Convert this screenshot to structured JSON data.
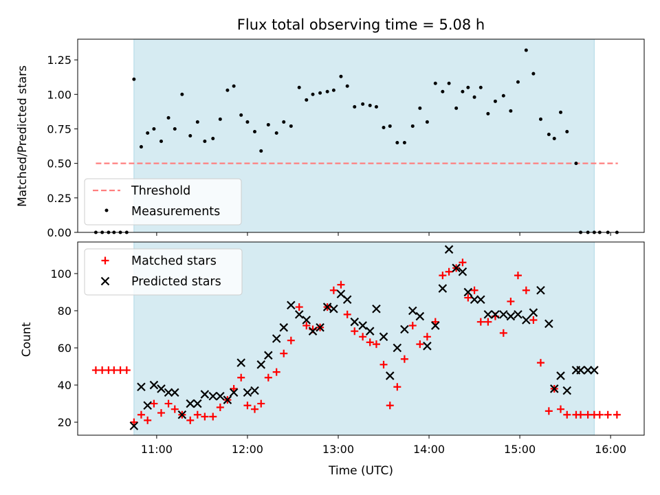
{
  "chart_data": [
    {
      "type": "scatter",
      "panel": "top",
      "title": "Flux total observing time = 5.08 h",
      "xlabel": "",
      "ylabel": "Matched/Predicted stars",
      "x_unit": "hours UTC",
      "xlim": [
        10.13,
        16.37
      ],
      "ylim": [
        0.0,
        1.4
      ],
      "yticks": [
        0.0,
        0.25,
        0.5,
        0.75,
        1.0,
        1.25
      ],
      "ytick_labels": [
        "0.00",
        "0.25",
        "0.50",
        "0.75",
        "1.00",
        "1.25"
      ],
      "xticks": [
        11,
        12,
        13,
        14,
        15,
        16
      ],
      "shaded_span": [
        10.75,
        15.82
      ],
      "shade_color": "#add8e6",
      "threshold": {
        "name": "Threshold",
        "value": 0.5,
        "x_range": [
          10.33,
          16.08
        ],
        "color": "#ff7f7f"
      },
      "measurements": {
        "name": "Measurements",
        "color": "#000000",
        "x": [
          10.33,
          10.4,
          10.47,
          10.53,
          10.6,
          10.67,
          10.75,
          10.83,
          10.9,
          10.97,
          11.05,
          11.13,
          11.2,
          11.28,
          11.37,
          11.45,
          11.53,
          11.62,
          11.7,
          11.78,
          11.85,
          11.93,
          12.0,
          12.08,
          12.15,
          12.23,
          12.32,
          12.4,
          12.48,
          12.57,
          12.65,
          12.72,
          12.8,
          12.88,
          12.95,
          13.03,
          13.1,
          13.18,
          13.27,
          13.35,
          13.42,
          13.5,
          13.57,
          13.65,
          13.73,
          13.82,
          13.9,
          13.98,
          14.07,
          14.15,
          14.22,
          14.3,
          14.37,
          14.43,
          14.5,
          14.57,
          14.65,
          14.73,
          14.82,
          14.9,
          14.98,
          15.07,
          15.15,
          15.23,
          15.32,
          15.38,
          15.45,
          15.52,
          15.62,
          15.67,
          15.75,
          15.82,
          15.88,
          15.97,
          16.07
        ],
        "y": [
          0.0,
          0.0,
          0.0,
          0.0,
          0.0,
          0.0,
          1.11,
          0.62,
          0.72,
          0.75,
          0.66,
          0.83,
          0.75,
          1.0,
          0.7,
          0.8,
          0.66,
          0.68,
          0.82,
          1.03,
          1.06,
          0.85,
          0.8,
          0.73,
          0.59,
          0.78,
          0.72,
          0.8,
          0.77,
          1.05,
          0.96,
          1.0,
          1.01,
          1.02,
          1.03,
          1.13,
          1.06,
          0.91,
          0.93,
          0.92,
          0.91,
          0.76,
          0.77,
          0.65,
          0.65,
          0.77,
          0.9,
          0.8,
          1.08,
          1.02,
          1.08,
          0.9,
          1.02,
          1.05,
          0.98,
          1.05,
          0.86,
          0.95,
          0.99,
          0.88,
          1.09,
          1.32,
          1.15,
          0.82,
          0.71,
          0.68,
          0.87,
          0.73,
          0.5,
          0.0,
          0.0,
          0.0,
          0.0,
          0.0,
          0.0
        ]
      },
      "legend": {
        "location": "lower-left",
        "entries": [
          "Threshold",
          "Measurements"
        ]
      }
    },
    {
      "type": "scatter",
      "panel": "bottom",
      "title": "",
      "xlabel": "Time (UTC)",
      "ylabel": "Count",
      "xlim": [
        10.13,
        16.37
      ],
      "ylim": [
        13,
        117
      ],
      "yticks": [
        20,
        40,
        60,
        80,
        100
      ],
      "ytick_labels": [
        "20",
        "40",
        "60",
        "80",
        "100"
      ],
      "xticks": [
        11,
        12,
        13,
        14,
        15,
        16
      ],
      "xtick_labels": [
        "11:00",
        "12:00",
        "13:00",
        "14:00",
        "15:00",
        "16:00"
      ],
      "shaded_span": [
        10.75,
        15.82
      ],
      "shade_color": "#add8e6",
      "series": [
        {
          "name": "Matched stars",
          "marker": "+",
          "color": "#ff0000",
          "x": [
            10.33,
            10.4,
            10.47,
            10.53,
            10.6,
            10.67,
            10.75,
            10.83,
            10.9,
            10.97,
            11.05,
            11.13,
            11.2,
            11.28,
            11.37,
            11.45,
            11.53,
            11.62,
            11.7,
            11.78,
            11.85,
            11.93,
            12.0,
            12.08,
            12.15,
            12.23,
            12.32,
            12.4,
            12.48,
            12.57,
            12.65,
            12.72,
            12.8,
            12.88,
            12.95,
            13.03,
            13.1,
            13.18,
            13.27,
            13.35,
            13.42,
            13.5,
            13.57,
            13.65,
            13.73,
            13.82,
            13.9,
            13.98,
            14.07,
            14.15,
            14.22,
            14.3,
            14.37,
            14.43,
            14.5,
            14.57,
            14.65,
            14.73,
            14.82,
            14.9,
            14.98,
            15.07,
            15.15,
            15.23,
            15.32,
            15.38,
            15.45,
            15.52,
            15.62,
            15.67,
            15.75,
            15.82,
            15.88,
            15.97,
            16.07
          ],
          "y": [
            48,
            48,
            48,
            48,
            48,
            48,
            20,
            24,
            21,
            30,
            25,
            30,
            27,
            24,
            21,
            24,
            23,
            23,
            28,
            32,
            38,
            44,
            29,
            27,
            30,
            44,
            47,
            57,
            64,
            82,
            72,
            70,
            71,
            82,
            91,
            94,
            78,
            69,
            66,
            63,
            62,
            51,
            29,
            39,
            54,
            72,
            62,
            66,
            74,
            99,
            101,
            103,
            106,
            87,
            91,
            74,
            74,
            77,
            68,
            85,
            99,
            91,
            75,
            52,
            26,
            38,
            27,
            24,
            24,
            24,
            24,
            24,
            24,
            24,
            24
          ],
          "y_note": "last points at 24"
        },
        {
          "name": "Predicted stars",
          "marker": "x",
          "color": "#000000",
          "x": [
            10.75,
            10.83,
            10.9,
            10.97,
            11.05,
            11.13,
            11.2,
            11.28,
            11.37,
            11.45,
            11.53,
            11.62,
            11.7,
            11.78,
            11.85,
            11.93,
            12.0,
            12.08,
            12.15,
            12.23,
            12.32,
            12.4,
            12.48,
            12.57,
            12.65,
            12.72,
            12.8,
            12.88,
            12.95,
            13.03,
            13.1,
            13.18,
            13.27,
            13.35,
            13.42,
            13.5,
            13.57,
            13.65,
            13.73,
            13.82,
            13.9,
            13.98,
            14.07,
            14.15,
            14.22,
            14.3,
            14.37,
            14.43,
            14.5,
            14.57,
            14.65,
            14.73,
            14.82,
            14.9,
            14.98,
            15.07,
            15.15,
            15.23,
            15.32,
            15.38,
            15.45,
            15.52,
            15.62,
            15.67,
            15.75,
            15.82
          ],
          "y": [
            18,
            39,
            29,
            40,
            38,
            36,
            36,
            24,
            30,
            30,
            35,
            34,
            34,
            32,
            36,
            52,
            36,
            37,
            51,
            56,
            65,
            71,
            83,
            78,
            75,
            69,
            71,
            82,
            81,
            89,
            86,
            74,
            72,
            69,
            81,
            66,
            45,
            60,
            70,
            80,
            77,
            61,
            72,
            92,
            113,
            103,
            101,
            90,
            86,
            86,
            78,
            78,
            78,
            77,
            78,
            75,
            79,
            91,
            73,
            38,
            45,
            37,
            48,
            48,
            48,
            48
          ],
          "y_note": "count limited to 66 visible points"
        }
      ],
      "legend": {
        "location": "top-left",
        "entries": [
          "Matched stars",
          "Predicted stars"
        ]
      }
    }
  ]
}
